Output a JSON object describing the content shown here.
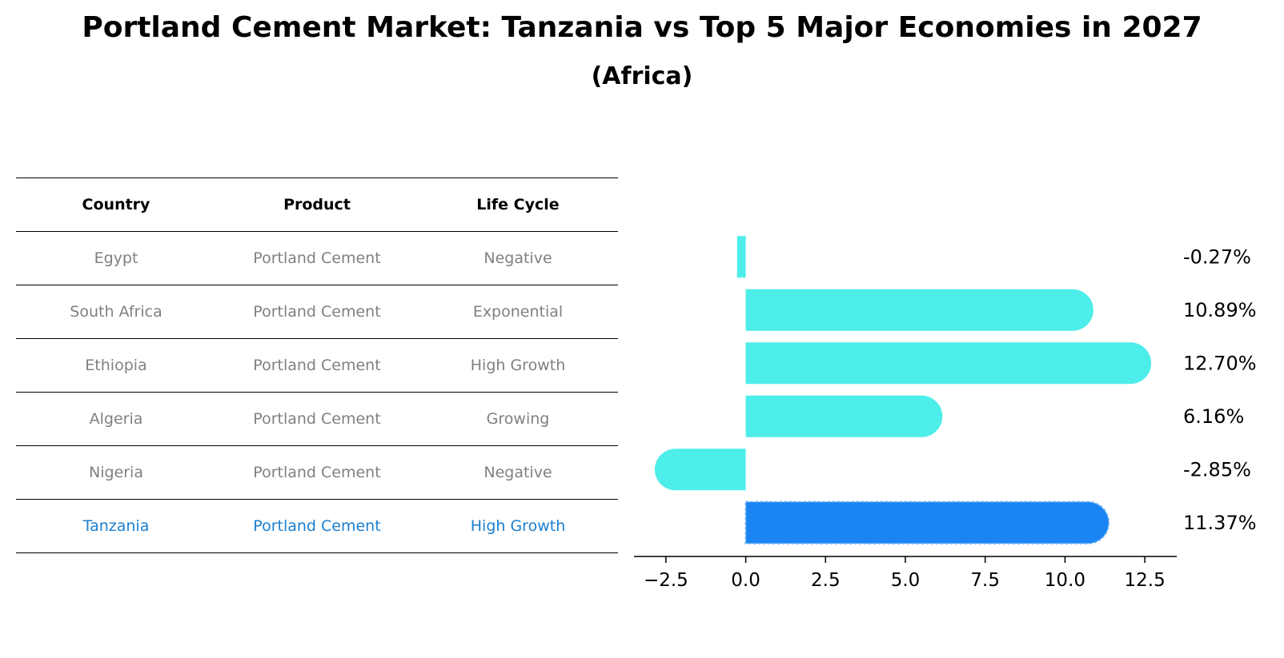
{
  "title": "Portland Cement Market: Tanzania vs Top 5 Major Economies in 2027",
  "subtitle": "(Africa)",
  "table": {
    "headers": [
      "Country",
      "Product",
      "Life Cycle"
    ],
    "rows": [
      {
        "country": "Egypt",
        "product": "Portland Cement",
        "life_cycle": "Negative"
      },
      {
        "country": "South Africa",
        "product": "Portland Cement",
        "life_cycle": "Exponential"
      },
      {
        "country": "Ethiopia",
        "product": "Portland Cement",
        "life_cycle": "High Growth"
      },
      {
        "country": "Algeria",
        "product": "Portland Cement",
        "life_cycle": "Growing"
      },
      {
        "country": "Nigeria",
        "product": "Portland Cement",
        "life_cycle": "Negative"
      },
      {
        "country": "Tanzania",
        "product": "Portland Cement",
        "life_cycle": "High Growth"
      }
    ]
  },
  "chart_data": {
    "type": "bar",
    "orientation": "horizontal",
    "categories": [
      "Egypt",
      "South Africa",
      "Ethiopia",
      "Algeria",
      "Nigeria",
      "Tanzania"
    ],
    "values": [
      -0.27,
      10.89,
      12.7,
      6.16,
      -2.85,
      11.37
    ],
    "data_labels": [
      "-0.27%",
      "10.89%",
      "12.70%",
      "6.16%",
      "-2.85%",
      "11.37%"
    ],
    "highlight": "Tanzania",
    "xlim": [
      -3.5,
      13.5
    ],
    "xticks": [
      -2.5,
      0.0,
      2.5,
      5.0,
      7.5,
      10.0,
      12.5
    ],
    "xtick_labels": [
      "−2.5",
      "0.0",
      "2.5",
      "5.0",
      "7.5",
      "10.0",
      "12.5"
    ],
    "colors": {
      "default": "#4dede9",
      "highlight": "#1984f2"
    }
  }
}
